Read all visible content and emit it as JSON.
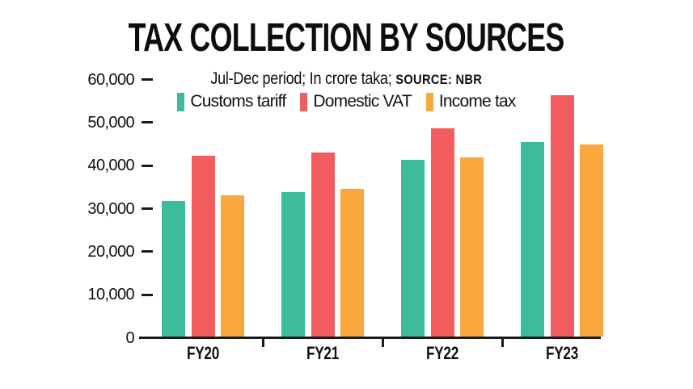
{
  "title": "TAX COLLECTION BY SOURCES",
  "subtitle": {
    "text": "Jul-Dec period; In crore taka; ",
    "source": "SOURCE: NBR"
  },
  "legend": [
    {
      "label": "Customs tariff",
      "color": "#3cbc9b"
    },
    {
      "label": "Domestic VAT",
      "color": "#f15c5f"
    },
    {
      "label": "Income tax",
      "color": "#f8a83c"
    }
  ],
  "colors": {
    "teal": "#3cbc9b",
    "red": "#f15c5f",
    "orange": "#f8a83c",
    "axis": "#1a1a1a",
    "text": "#111111",
    "background": "#ffffff"
  },
  "chart_data": {
    "type": "bar",
    "title": "TAX COLLECTION BY SOURCES",
    "subtitle": "Jul-Dec period; In crore taka; SOURCE: NBR",
    "categories": [
      "FY20",
      "FY21",
      "FY22",
      "FY23"
    ],
    "series": [
      {
        "name": "Customs tariff",
        "color": "#3cbc9b",
        "values": [
          31500,
          33600,
          41100,
          45200
        ]
      },
      {
        "name": "Domestic VAT",
        "color": "#f15c5f",
        "values": [
          42000,
          42800,
          48400,
          56100
        ]
      },
      {
        "name": "Income tax",
        "color": "#f8a83c",
        "values": [
          32800,
          34400,
          41700,
          44700
        ]
      }
    ],
    "xlabel": "",
    "ylabel": "",
    "ylim": [
      0,
      60000
    ],
    "yticks": [
      0,
      10000,
      20000,
      30000,
      40000,
      50000,
      60000
    ],
    "ytick_labels": [
      "0",
      "10,000",
      "20,000",
      "30,000",
      "40,000",
      "50,000",
      "60,000"
    ],
    "grid": false,
    "legend_position": "top-center"
  }
}
